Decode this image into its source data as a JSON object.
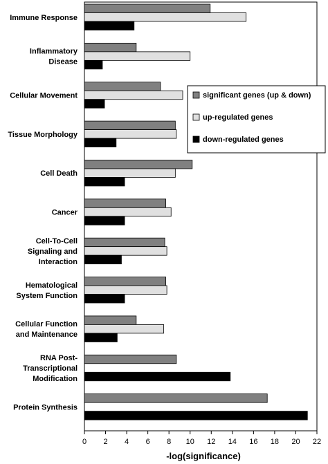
{
  "chart_data": {
    "type": "bar",
    "orientation": "horizontal",
    "categories": [
      "Immune Response",
      "Inflammatory\nDisease",
      "Cellular Movement",
      "Tissue Morphology",
      "Cell Death",
      "Cancer",
      "Cell-To-Cell\nSignaling and\nInteraction",
      "Hematological\nSystem  Function",
      "Cellular Function\nand Maintenance",
      "RNA Post-\nTranscriptional\nModification",
      "Protein Synthesis"
    ],
    "series": [
      {
        "name": "significant genes (up & down)",
        "color": "#808080",
        "values": [
          11.9,
          4.9,
          7.2,
          8.6,
          10.2,
          7.7,
          7.6,
          7.7,
          4.9,
          8.7,
          17.3
        ]
      },
      {
        "name": "up-regulated genes",
        "color": "#e0e0e0",
        "values": [
          15.3,
          10.0,
          9.3,
          8.7,
          8.6,
          8.2,
          7.8,
          7.8,
          7.5,
          null,
          null
        ]
      },
      {
        "name": "down-regulated genes",
        "color": "#000000",
        "values": [
          4.7,
          1.7,
          1.9,
          3.0,
          3.8,
          3.8,
          3.5,
          3.8,
          3.1,
          13.8,
          21.1
        ]
      }
    ],
    "xlabel": "-log(significance)",
    "ylabel": "",
    "xlim": [
      0,
      22
    ],
    "xticks": [
      0,
      2,
      4,
      6,
      8,
      10,
      12,
      14,
      16,
      18,
      20,
      22
    ],
    "grid": false,
    "legend": "right, upper-middle"
  }
}
